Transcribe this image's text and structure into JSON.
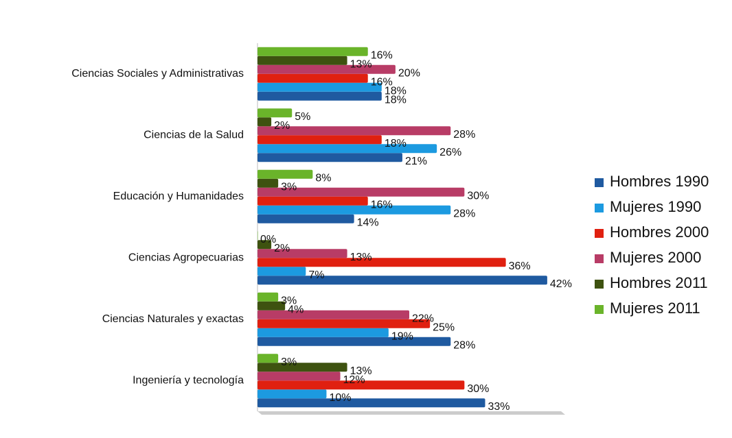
{
  "chart_data": {
    "type": "bar",
    "orientation": "horizontal",
    "categories": [
      "Ciencias Sociales y Administrativas",
      "Ciencias de la Salud",
      "Educación y Humanidades",
      "Ciencias Agropecuarias",
      "Ciencias Naturales y exactas",
      "Ingeniería y tecnología"
    ],
    "series": [
      {
        "name": "Hombres 1990",
        "color": "#1f5aa0",
        "values": [
          18,
          21,
          14,
          42,
          28,
          33
        ],
        "value_labels": [
          "18%",
          "21%",
          "14%",
          "42%",
          "28%",
          "33%"
        ]
      },
      {
        "name": "Mujeres 1990",
        "color": "#1c9ae0",
        "values": [
          18,
          26,
          28,
          7,
          19,
          10
        ],
        "value_labels": [
          "18%",
          "26%",
          "28%",
          "7%",
          "19%",
          "10%"
        ]
      },
      {
        "name": "Hombres 2000",
        "color": "#e02010",
        "values": [
          16,
          18,
          16,
          36,
          25,
          30
        ],
        "value_labels": [
          "16%",
          "18%",
          "16%",
          "36%",
          "25%",
          "30%"
        ]
      },
      {
        "name": "Mujeres 2000",
        "color": "#b83c66",
        "values": [
          20,
          28,
          30,
          13,
          22,
          12
        ],
        "value_labels": [
          "20%",
          "28%",
          "30%",
          "13%",
          "22%",
          "12%"
        ]
      },
      {
        "name": "Hombres 2011",
        "color": "#3e5210",
        "values": [
          13,
          2,
          3,
          2,
          4,
          13
        ],
        "value_labels": [
          "13%",
          "2%",
          "3%",
          "2%",
          "4%",
          "13%"
        ]
      },
      {
        "name": "Mujeres 2011",
        "color": "#6ab42a",
        "values": [
          16,
          5,
          8,
          0,
          3,
          3
        ],
        "value_labels": [
          "16%",
          "5%",
          "8%",
          "0%",
          "3%",
          "3%"
        ]
      }
    ],
    "xlim": [
      0,
      44
    ],
    "legend": "right"
  }
}
